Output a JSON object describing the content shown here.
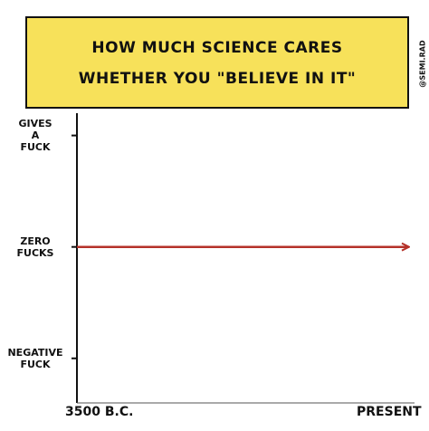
{
  "chart_data": {
    "type": "line",
    "title": "HOW MUCH SCIENCE CARES\nWHETHER YOU \"BELIEVE IN IT\"",
    "credit": "@SEMI.RAD",
    "categories": [
      "3500 B.C.",
      "PRESENT"
    ],
    "series": [
      {
        "color": "#b5322a",
        "values": [
          0,
          0
        ]
      }
    ],
    "ylim": [
      -1.4,
      1.2
    ],
    "yticks": [
      {
        "value": 1,
        "label": "GIVES\nA\nFUCK"
      },
      {
        "value": 0,
        "label": "ZERO\nFUCKS"
      },
      {
        "value": -1,
        "label": "NEGATIVE\nFUCK"
      }
    ]
  }
}
